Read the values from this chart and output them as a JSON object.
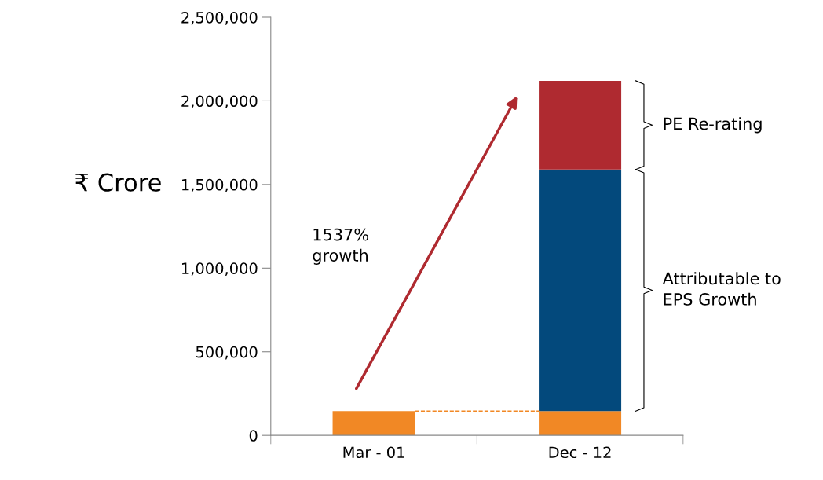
{
  "chart_data": {
    "type": "bar",
    "stacked": true,
    "ylabel": "₹ Crore",
    "categories": [
      "Mar - 01",
      "Dec - 12"
    ],
    "series": [
      {
        "color": "#f18825",
        "values": [
          145000,
          145000
        ]
      },
      {
        "color": "#03497c",
        "values": [
          null,
          1445000
        ]
      },
      {
        "color": "#af2a30",
        "values": [
          null,
          530000
        ]
      }
    ],
    "ylim": [
      0,
      2500000
    ],
    "yticks": [
      {
        "value": 0,
        "label": "0"
      },
      {
        "value": 500000,
        "label": "500,000"
      },
      {
        "value": 1000000,
        "label": "1,000,000"
      },
      {
        "value": 1500000,
        "label": "1,500,000"
      },
      {
        "value": 2000000,
        "label": "2,000,000"
      },
      {
        "value": 2500000,
        "label": "2,500,000"
      }
    ],
    "ref_lines": [
      {
        "axis": "y",
        "value": 145000,
        "color": "#f18825",
        "line_style": "dashed"
      }
    ],
    "annotations": [
      "1537%\ngrowth",
      "PE Re-rating",
      "Attributable to\nEPS Growth"
    ],
    "grid": false,
    "legend": false
  }
}
